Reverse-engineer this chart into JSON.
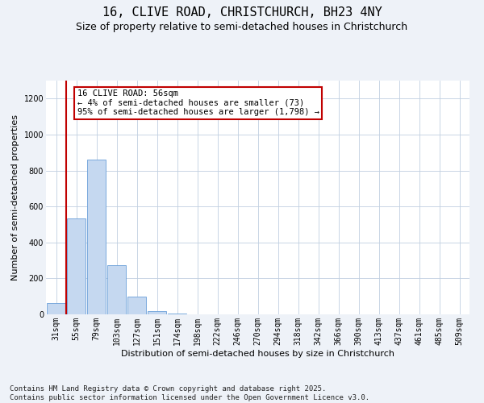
{
  "title_line1": "16, CLIVE ROAD, CHRISTCHURCH, BH23 4NY",
  "title_line2": "Size of property relative to semi-detached houses in Christchurch",
  "xlabel": "Distribution of semi-detached houses by size in Christchurch",
  "ylabel": "Number of semi-detached properties",
  "categories": [
    "31sqm",
    "55sqm",
    "79sqm",
    "103sqm",
    "127sqm",
    "151sqm",
    "174sqm",
    "198sqm",
    "222sqm",
    "246sqm",
    "270sqm",
    "294sqm",
    "318sqm",
    "342sqm",
    "366sqm",
    "390sqm",
    "413sqm",
    "437sqm",
    "461sqm",
    "485sqm",
    "509sqm"
  ],
  "values": [
    65,
    535,
    860,
    275,
    100,
    20,
    5,
    0,
    0,
    0,
    0,
    0,
    0,
    0,
    0,
    0,
    0,
    0,
    0,
    0,
    0
  ],
  "bar_color": "#c5d8f0",
  "bar_edge_color": "#6a9fd8",
  "vline_color": "#c00000",
  "annotation_text": "16 CLIVE ROAD: 56sqm\n← 4% of semi-detached houses are smaller (73)\n95% of semi-detached houses are larger (1,798) →",
  "annotation_box_color": "white",
  "annotation_box_edge_color": "#c00000",
  "ylim": [
    0,
    1300
  ],
  "yticks": [
    0,
    200,
    400,
    600,
    800,
    1000,
    1200
  ],
  "footnote": "Contains HM Land Registry data © Crown copyright and database right 2025.\nContains public sector information licensed under the Open Government Licence v3.0.",
  "background_color": "#eef2f8",
  "plot_background_color": "white",
  "grid_color": "#c0cfe0",
  "title_fontsize": 11,
  "subtitle_fontsize": 9,
  "axis_label_fontsize": 8,
  "tick_fontsize": 7,
  "annotation_fontsize": 7.5,
  "footnote_fontsize": 6.5
}
